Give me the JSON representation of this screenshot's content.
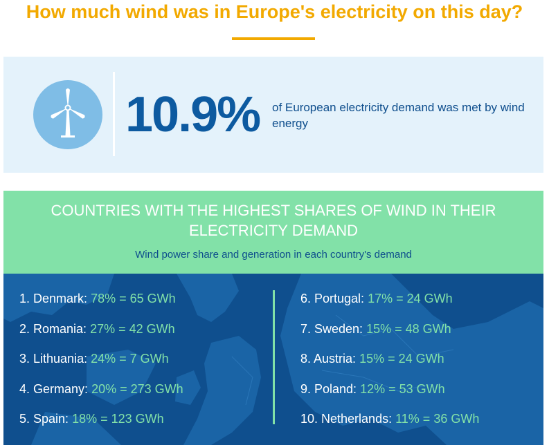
{
  "headline": "How much wind was in Europe's electricity on this day?",
  "summary": {
    "icon": "wind-turbine-icon",
    "percent": "10.9%",
    "description": "of European electricity demand was met by wind energy"
  },
  "countries": {
    "title": "COUNTRIES WITH THE HIGHEST SHARES OF WIND IN THEIR ELECTRICITY DEMAND",
    "subtitle": "Wind power share and generation in each country's demand",
    "left": [
      {
        "name": "1. Denmark:",
        "value": "78% = 65 GWh"
      },
      {
        "name": "2. Romania:",
        "value": "27% = 42 GWh"
      },
      {
        "name": "3. Lithuania:",
        "value": "24% = 7 GWh"
      },
      {
        "name": "4. Germany:",
        "value": "20% = 273 GWh"
      },
      {
        "name": "5. Spain:",
        "value": "18% = 123 GWh"
      }
    ],
    "right": [
      {
        "name": "6. Portugal:",
        "value": "17% = 24 GWh"
      },
      {
        "name": "7. Sweden:",
        "value": "15% = 48 GWh"
      },
      {
        "name": "8. Austria:",
        "value": "15% = 24 GWh"
      },
      {
        "name": "9. Poland:",
        "value": "12% = 53 GWh"
      },
      {
        "name": "10. Netherlands:",
        "value": "11% = 36 GWh"
      }
    ]
  },
  "colors": {
    "accent": "#f2a900",
    "dark_blue": "#0d5aa0",
    "panel_blue": "#0f4f8e",
    "green": "#82e1a8",
    "light_blue": "#e4f2fb"
  }
}
